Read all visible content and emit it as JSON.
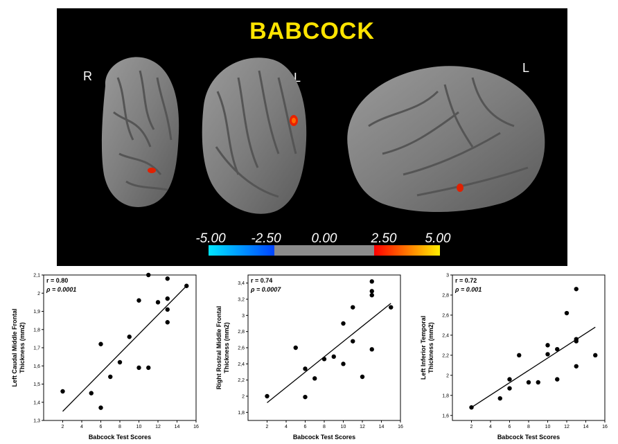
{
  "figure": {
    "title": "BABCOCK",
    "hemisphere_labels": [
      "R",
      "L",
      "L"
    ],
    "colorbar": {
      "ticks": [
        "-5.00",
        "-2.50",
        "0.00",
        "2.50",
        "5.00"
      ],
      "colors": {
        "neg_low": "#0077ff",
        "neg_high": "#00e5ff",
        "zero": "#8c8c8c",
        "pos_low": "#ff0000",
        "pos_high": "#ffee00"
      }
    }
  },
  "chart_data": [
    {
      "type": "scatter",
      "xlabel": "Babcock Test Scores",
      "ylabel": "Left Caudal Middle Frontal Thickness (mm2)",
      "ylabel_lines": [
        "Left Caudal Middle Frontal",
        "Thickness (mm2)"
      ],
      "stat_r": "r = 0.80",
      "stat_p": "ρ = 0.0001",
      "xlim": [
        0,
        16
      ],
      "ylim": [
        1.3,
        2.1
      ],
      "xticks": [
        "2",
        "4",
        "6",
        "8",
        "10",
        "12",
        "14",
        "16"
      ],
      "yticks": [
        "1,3",
        "1,4",
        "1,5",
        "1,6",
        "1,7",
        "1,8",
        "1,9",
        "2",
        "2,1"
      ],
      "points": [
        {
          "x": 2,
          "y": 1.46
        },
        {
          "x": 5,
          "y": 1.45
        },
        {
          "x": 6,
          "y": 1.37
        },
        {
          "x": 6,
          "y": 1.72
        },
        {
          "x": 7,
          "y": 1.54
        },
        {
          "x": 8,
          "y": 1.62
        },
        {
          "x": 9,
          "y": 1.76
        },
        {
          "x": 10,
          "y": 1.59
        },
        {
          "x": 10,
          "y": 1.96
        },
        {
          "x": 11,
          "y": 1.59
        },
        {
          "x": 11,
          "y": 2.1
        },
        {
          "x": 12,
          "y": 1.95
        },
        {
          "x": 13,
          "y": 1.84
        },
        {
          "x": 13,
          "y": 1.91
        },
        {
          "x": 13,
          "y": 1.97
        },
        {
          "x": 13,
          "y": 2.08
        },
        {
          "x": 15,
          "y": 2.04
        }
      ],
      "fit": {
        "x": [
          2,
          15
        ],
        "y": [
          1.35,
          2.04
        ]
      }
    },
    {
      "type": "scatter",
      "xlabel": "Babcock Test Scores",
      "ylabel": "Right Rostral Middle Frontal Thickness (mm2)",
      "ylabel_lines": [
        "Right Rostral Middle Frontal",
        "Thickness (mm2)"
      ],
      "stat_r": "r = 0.74",
      "stat_p": "ρ = 0.0007",
      "xlim": [
        0,
        16
      ],
      "ylim": [
        1.7,
        3.5
      ],
      "xticks": [
        "2",
        "4",
        "6",
        "8",
        "10",
        "12",
        "14",
        "16"
      ],
      "yticks": [
        "1,8",
        "2",
        "2,2",
        "2,4",
        "2,6",
        "2,8",
        "3",
        "3,2",
        "3,4"
      ],
      "points": [
        {
          "x": 2,
          "y": 2.0
        },
        {
          "x": 5,
          "y": 2.6
        },
        {
          "x": 6,
          "y": 1.99
        },
        {
          "x": 6,
          "y": 2.34
        },
        {
          "x": 7,
          "y": 2.22
        },
        {
          "x": 8,
          "y": 2.46
        },
        {
          "x": 9,
          "y": 2.49
        },
        {
          "x": 10,
          "y": 2.4
        },
        {
          "x": 10,
          "y": 2.9
        },
        {
          "x": 11,
          "y": 2.68
        },
        {
          "x": 11,
          "y": 3.1
        },
        {
          "x": 12,
          "y": 2.24
        },
        {
          "x": 13,
          "y": 2.58
        },
        {
          "x": 13,
          "y": 3.25
        },
        {
          "x": 13,
          "y": 3.3
        },
        {
          "x": 13,
          "y": 3.42
        },
        {
          "x": 15,
          "y": 3.1
        }
      ],
      "fit": {
        "x": [
          2,
          15
        ],
        "y": [
          1.92,
          3.15
        ]
      }
    },
    {
      "type": "scatter",
      "xlabel": "Babcock Test Scores",
      "ylabel": "Left Inferior Temporal Thickness (mm2)",
      "ylabel_lines": [
        "Left Inferior Temporal",
        "Thickness (mm2)"
      ],
      "stat_r": "r = 0.72",
      "stat_p": "ρ = 0.001",
      "xlim": [
        0,
        16
      ],
      "ylim": [
        1.55,
        3.0
      ],
      "xticks": [
        "2",
        "4",
        "6",
        "8",
        "10",
        "12",
        "14",
        "16"
      ],
      "yticks": [
        "1,6",
        "1,8",
        "2",
        "2,2",
        "2,4",
        "2,6",
        "2,8",
        "3"
      ],
      "points": [
        {
          "x": 2,
          "y": 1.68
        },
        {
          "x": 5,
          "y": 1.77
        },
        {
          "x": 6,
          "y": 1.87
        },
        {
          "x": 6,
          "y": 1.96
        },
        {
          "x": 7,
          "y": 2.2
        },
        {
          "x": 8,
          "y": 1.93
        },
        {
          "x": 9,
          "y": 1.93
        },
        {
          "x": 10,
          "y": 2.21
        },
        {
          "x": 10,
          "y": 2.3
        },
        {
          "x": 11,
          "y": 1.96
        },
        {
          "x": 11,
          "y": 2.26
        },
        {
          "x": 12,
          "y": 2.62
        },
        {
          "x": 13,
          "y": 2.09
        },
        {
          "x": 13,
          "y": 2.34
        },
        {
          "x": 13,
          "y": 2.36
        },
        {
          "x": 13,
          "y": 2.86
        },
        {
          "x": 15,
          "y": 2.2
        }
      ],
      "fit": {
        "x": [
          2,
          15
        ],
        "y": [
          1.68,
          2.48
        ]
      }
    }
  ]
}
